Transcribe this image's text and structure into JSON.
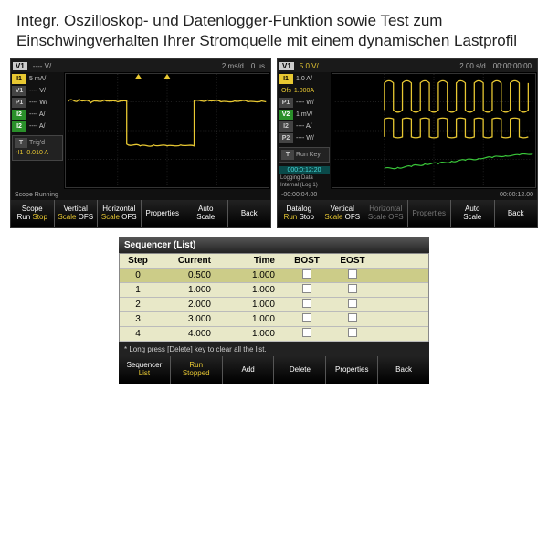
{
  "headline": "Integr. Oszilloskop- und Datenlogger-Funktion sowie Test zum Einschwingverhalten Ihrer Stromquelle mit einem dynamischen Lastprofil",
  "scope1": {
    "top_v": "---- V/",
    "top_rate": "2 ms/d",
    "top_offset": "0 us",
    "channels": [
      {
        "badge": "I1",
        "cls": "ch-yellow",
        "val": "5 mA/"
      },
      {
        "badge": "V1",
        "cls": "ch-gray",
        "val": "---- V/"
      },
      {
        "badge": "P1",
        "cls": "ch-gray",
        "val": "---- W/"
      },
      {
        "badge": "I2",
        "cls": "ch-green",
        "val": "---- A/"
      },
      {
        "badge": "I2",
        "cls": "ch-green",
        "val": "---- A/"
      }
    ],
    "trig_mode": "Trig'd",
    "trig_arrow": "↑I1",
    "trig_val": "0.010 A",
    "status": "Scope Running",
    "menu": [
      {
        "l1": "Scope",
        "c1": "m-white",
        "l2a": "Run",
        "c2a": "m-white",
        "l2b": "Stop",
        "c2b": "m-yellow"
      },
      {
        "l1": "Vertical",
        "c1": "m-white",
        "l2a": "Scale",
        "c2a": "m-yellow",
        "l2b": "OFS",
        "c2b": "m-white"
      },
      {
        "l1": "Horizontal",
        "c1": "m-white",
        "l2a": "Scale",
        "c2a": "m-yellow",
        "l2b": "OFS",
        "c2b": "m-white"
      },
      {
        "l1": "Properties",
        "c1": "m-white",
        "l2a": "",
        "c2a": "",
        "l2b": "",
        "c2b": ""
      },
      {
        "l1": "Auto",
        "c1": "m-white",
        "l2a": "Scale",
        "c2a": "m-white",
        "l2b": "",
        "c2b": ""
      },
      {
        "l1": "Back",
        "c1": "m-white",
        "l2a": "",
        "c2a": "",
        "l2b": "",
        "c2b": ""
      }
    ]
  },
  "scope2": {
    "top_v": "5.0 V/",
    "top_rate": "2.00 s/d",
    "top_time": "00:00:00:00",
    "channels": [
      {
        "badge": "I1",
        "cls": "ch-yellow",
        "val": "1.0 A/"
      },
      {
        "off": "Ofs",
        "offval": "1.000A"
      },
      {
        "badge": "P1",
        "cls": "ch-gray",
        "val": "---- W/"
      },
      {
        "badge": "V2",
        "cls": "ch-green",
        "val": "1 mV/"
      },
      {
        "badge": "I2",
        "cls": "ch-gray",
        "val": "---- A/"
      },
      {
        "badge": "P2",
        "cls": "ch-gray",
        "val": "---- W/"
      }
    ],
    "run_mode": "Run Key",
    "log_time": "000:0:12:20",
    "log_txt1": "Logging Data",
    "log_txt2": "Internal (Log 1)",
    "status_left": "-00:00:04.00",
    "status_right": "00:00:12.00",
    "menu": [
      {
        "l1": "Datalog",
        "c1": "m-white",
        "l2a": "Run",
        "c2a": "m-yellow",
        "l2b": "Stop",
        "c2b": "m-white"
      },
      {
        "l1": "Vertical",
        "c1": "m-white",
        "l2a": "Scale",
        "c2a": "m-yellow",
        "l2b": "OFS",
        "c2b": "m-white"
      },
      {
        "l1": "Horizontal",
        "c1": "m-gray",
        "l2a": "Scale",
        "c2a": "m-gray",
        "l2b": "OFS",
        "c2b": "m-gray"
      },
      {
        "l1": "Properties",
        "c1": "m-gray",
        "l2a": "",
        "c2a": "",
        "l2b": "",
        "c2b": ""
      },
      {
        "l1": "Auto",
        "c1": "m-white",
        "l2a": "Scale",
        "c2a": "m-white",
        "l2b": "",
        "c2b": ""
      },
      {
        "l1": "Back",
        "c1": "m-white",
        "l2a": "",
        "c2a": "",
        "l2b": "",
        "c2b": ""
      }
    ]
  },
  "seq": {
    "title": "Sequencer (List)",
    "head": {
      "step": "Step",
      "curr": "Current",
      "time": "Time",
      "bost": "BOST",
      "eost": "EOST"
    },
    "rows": [
      {
        "step": "0",
        "curr": "0.500",
        "time": "1.000",
        "sel": true
      },
      {
        "step": "1",
        "curr": "1.000",
        "time": "1.000",
        "sel": false
      },
      {
        "step": "2",
        "curr": "2.000",
        "time": "1.000",
        "sel": false
      },
      {
        "step": "3",
        "curr": "3.000",
        "time": "1.000",
        "sel": false
      },
      {
        "step": "4",
        "curr": "4.000",
        "time": "1.000",
        "sel": false
      }
    ],
    "hint": "* Long press [Delete] key to clear all the list.",
    "menu": [
      {
        "l1": "Sequencer",
        "c1": "m-white",
        "l2a": "List",
        "c2a": "m-yellow",
        "l2b": "",
        "c2b": ""
      },
      {
        "l1": "Run",
        "c1": "m-yellow",
        "l2a": "Stopped",
        "c2a": "m-yellow",
        "l2b": "",
        "c2b": ""
      },
      {
        "l1": "Add",
        "c1": "m-white",
        "l2a": "",
        "c2a": "",
        "l2b": "",
        "c2b": ""
      },
      {
        "l1": "Delete",
        "c1": "m-white",
        "l2a": "",
        "c2a": "",
        "l2b": "",
        "c2b": ""
      },
      {
        "l1": "Properties",
        "c1": "m-white",
        "l2a": "",
        "c2a": "",
        "l2b": "",
        "c2b": ""
      },
      {
        "l1": "Back",
        "c1": "m-white",
        "l2a": "",
        "c2a": "",
        "l2b": "",
        "c2b": ""
      }
    ]
  }
}
